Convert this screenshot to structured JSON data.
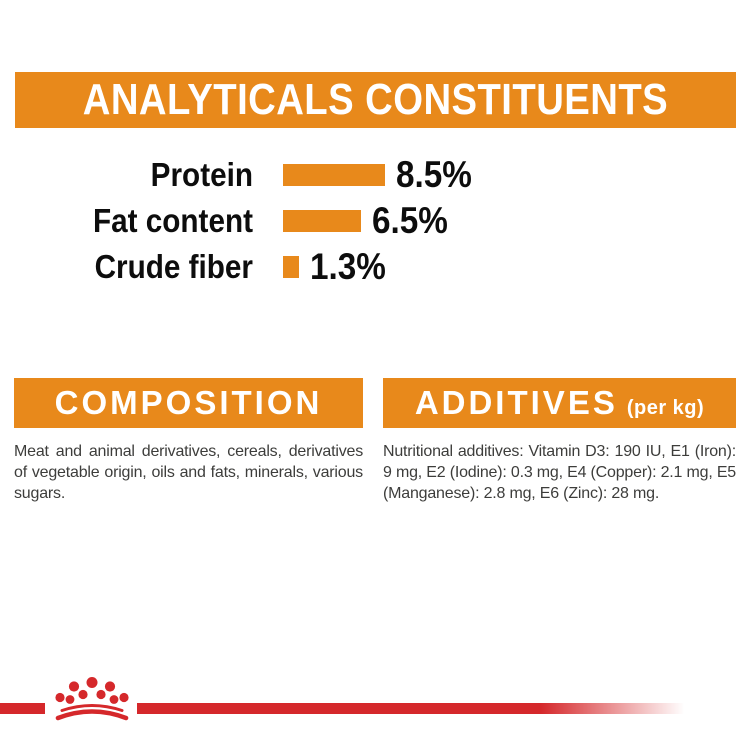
{
  "colors": {
    "orange": "#E8891B",
    "red": "#D5282B",
    "body_text": "#3D3D3B",
    "chart_text": "#0D0D0D"
  },
  "header": {
    "title": "ANALYTICALS CONSTITUENTS"
  },
  "chart_data": {
    "type": "bar",
    "orientation": "horizontal",
    "title": "ANALYTICALS CONSTITUENTS",
    "categories": [
      "Protein",
      "Fat content",
      "Crude fiber"
    ],
    "values": [
      8.5,
      6.5,
      1.3
    ],
    "value_labels": [
      "8.5%",
      "6.5%",
      "1.3%"
    ],
    "unit": "%",
    "bar_color": "#E8891B",
    "xlim": [
      0,
      10
    ],
    "grid": false,
    "legend": false
  },
  "composition": {
    "heading": "COMPOSITION",
    "body": "Meat and animal derivatives, cereals, derivatives of vegetable origin, oils and fats, minerals, various sugars."
  },
  "additives": {
    "heading": "ADDITIVES",
    "heading_suffix": "(per kg)",
    "body": "Nutritional additives: Vitamin D3: 190 IU, E1 (Iron): 9 mg, E2 (Iodine): 0.3 mg, E4 (Copper): 2.1 mg, E5 (Manganese): 2.8 mg, E6 (Zinc): 28 mg."
  }
}
